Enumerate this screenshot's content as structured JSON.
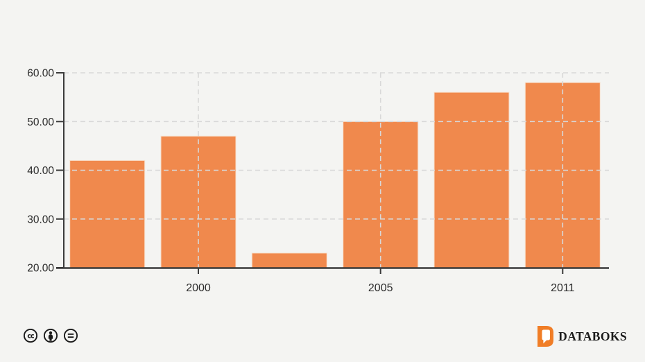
{
  "colors": {
    "background": "#f4f4f2",
    "bar": "#F0894D",
    "bar_edge": "#F8E0CC",
    "axis": "#3a3a3a",
    "grid": "#d8d8d8",
    "tick_text": "#2b2b2b",
    "brand_orange": "#F07D26",
    "brand_text": "#1b1b1b",
    "license_icon": "#1a1a1a"
  },
  "chart_data": {
    "type": "bar",
    "title": "",
    "xlabel": "",
    "ylabel": "",
    "values": [
      42,
      47,
      23,
      50,
      56,
      58
    ],
    "x_tick_labels": [
      {
        "bar_index": 1,
        "label": "2000"
      },
      {
        "bar_index": 3,
        "label": "2005"
      },
      {
        "bar_index": 5,
        "label": "2011"
      }
    ],
    "y_ticks": [
      {
        "value": 20,
        "label": "20.00"
      },
      {
        "value": 30,
        "label": "30.00"
      },
      {
        "value": 40,
        "label": "40.00"
      },
      {
        "value": 50,
        "label": "50.00"
      },
      {
        "value": 60,
        "label": "60.00"
      }
    ],
    "ylim": [
      20,
      60
    ],
    "grid": "dashed",
    "legend_position": "none"
  },
  "footer": {
    "license_icons": [
      {
        "name": "cc-icon",
        "glyph": "cc"
      },
      {
        "name": "attribution-icon",
        "glyph": "person"
      },
      {
        "name": "no-derivatives-icon",
        "glyph": "="
      }
    ],
    "brand": "DATABOKS"
  }
}
